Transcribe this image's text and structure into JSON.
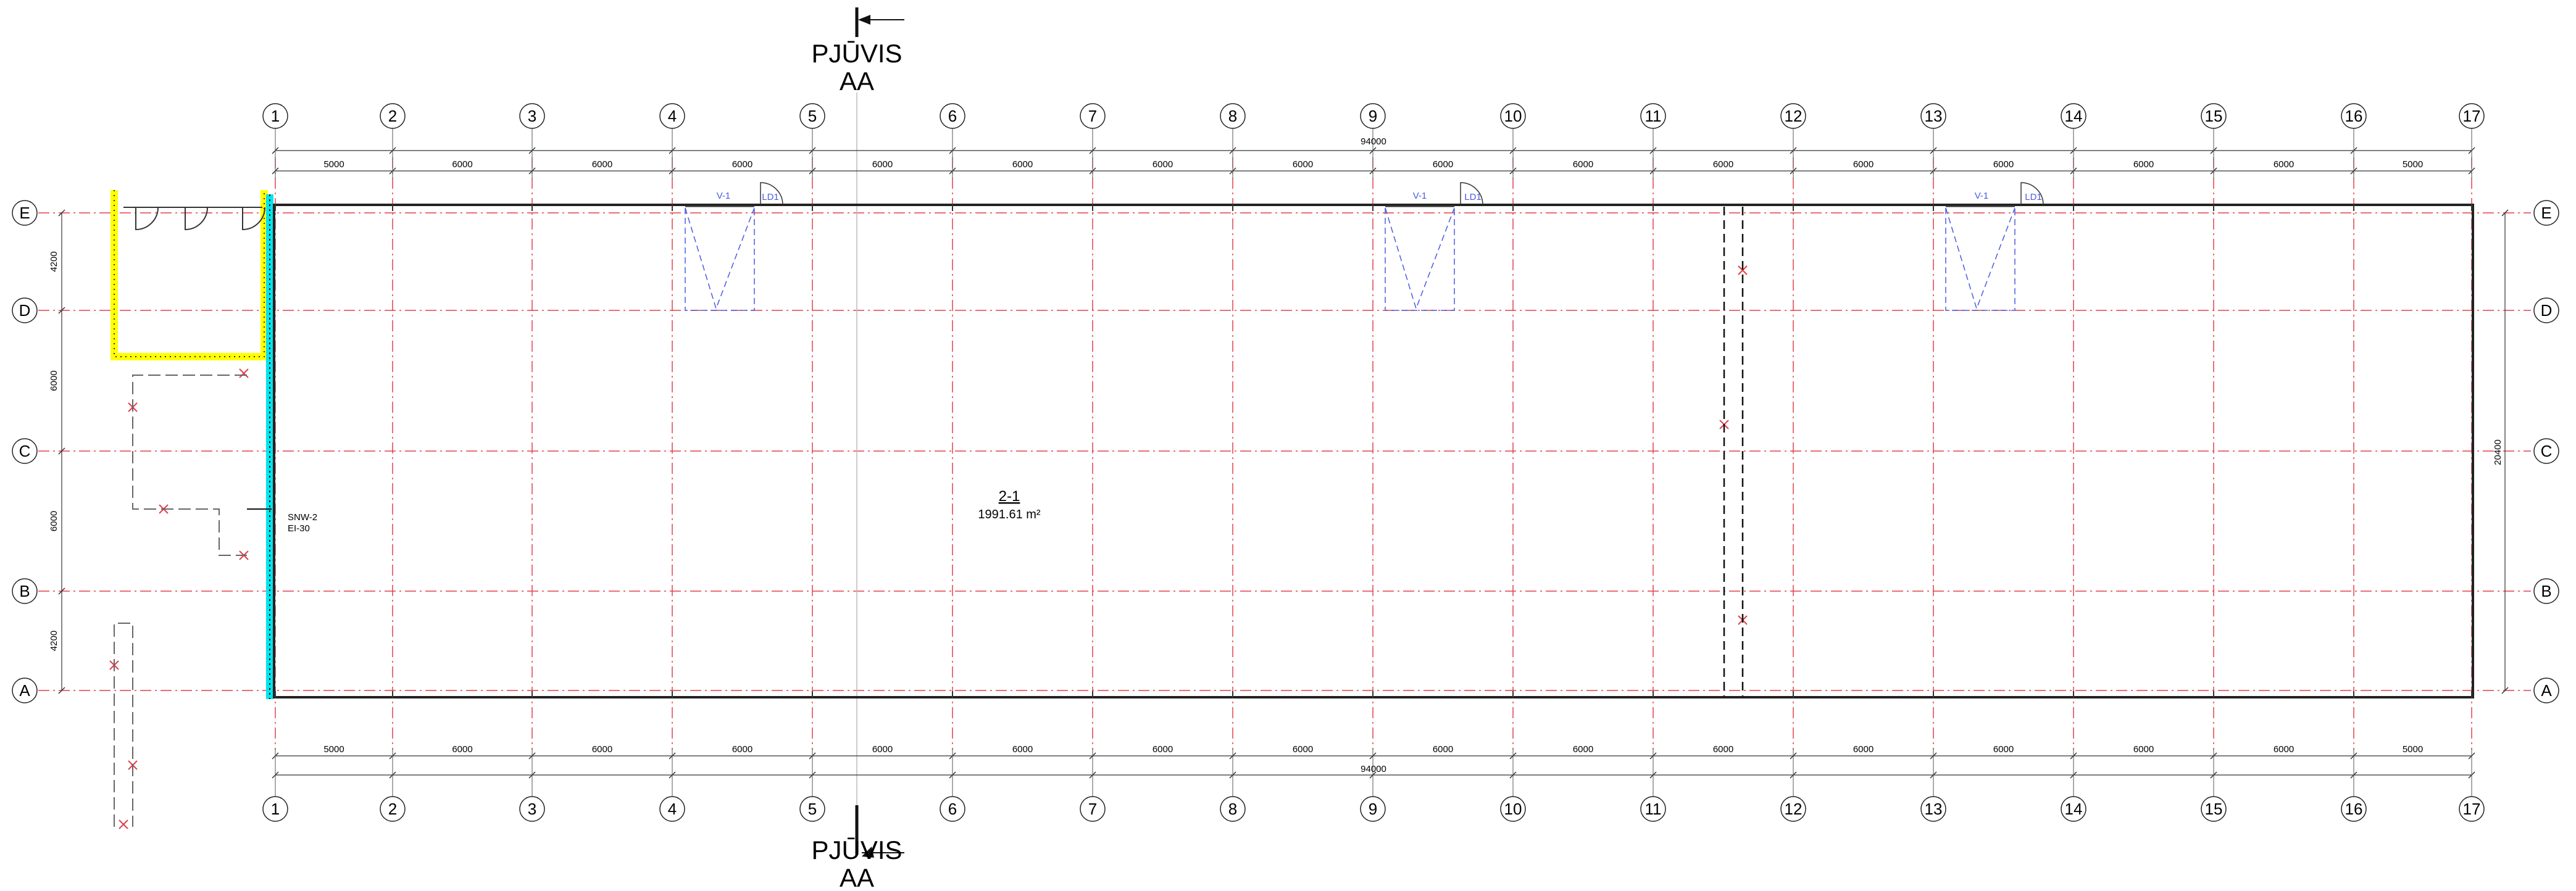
{
  "section_marks": [
    {
      "id": "top",
      "line1": "PJŪVIS",
      "line2": "AA"
    },
    {
      "id": "bottom",
      "line1": "PJŪVIS",
      "line2": "AA"
    }
  ],
  "column_axes": [
    "1",
    "2",
    "3",
    "4",
    "5",
    "6",
    "7",
    "8",
    "9",
    "10",
    "11",
    "12",
    "13",
    "14",
    "15",
    "16",
    "17"
  ],
  "row_axes": [
    "E",
    "D",
    "C",
    "B",
    "A"
  ],
  "column_spacings": [
    "5000",
    "6000",
    "6000",
    "6000",
    "6000",
    "6000",
    "6000",
    "6000",
    "6000",
    "6000",
    "6000",
    "6000",
    "6000",
    "6000",
    "6000",
    "5000"
  ],
  "overall_length": "94000",
  "row_spacings": [
    "4200",
    "6000",
    "6000",
    "4200"
  ],
  "overall_width": "20400",
  "room": {
    "number": "2-1",
    "area": "1991.61 m²"
  },
  "wall_tag": {
    "type": "SNW-2",
    "rating": "EI-30"
  },
  "openings": [
    {
      "window": "V-1",
      "door": "LD1"
    },
    {
      "window": "V-1",
      "door": "LD1"
    },
    {
      "window": "V-1",
      "door": "LD1"
    }
  ],
  "colors": {
    "grid_line": "#e0404a",
    "wall": "#222222",
    "highlight_yellow": "#ffff00",
    "highlight_cyan": "#00e5ee",
    "opening": "#4a5be0",
    "dimension": "#333333"
  }
}
